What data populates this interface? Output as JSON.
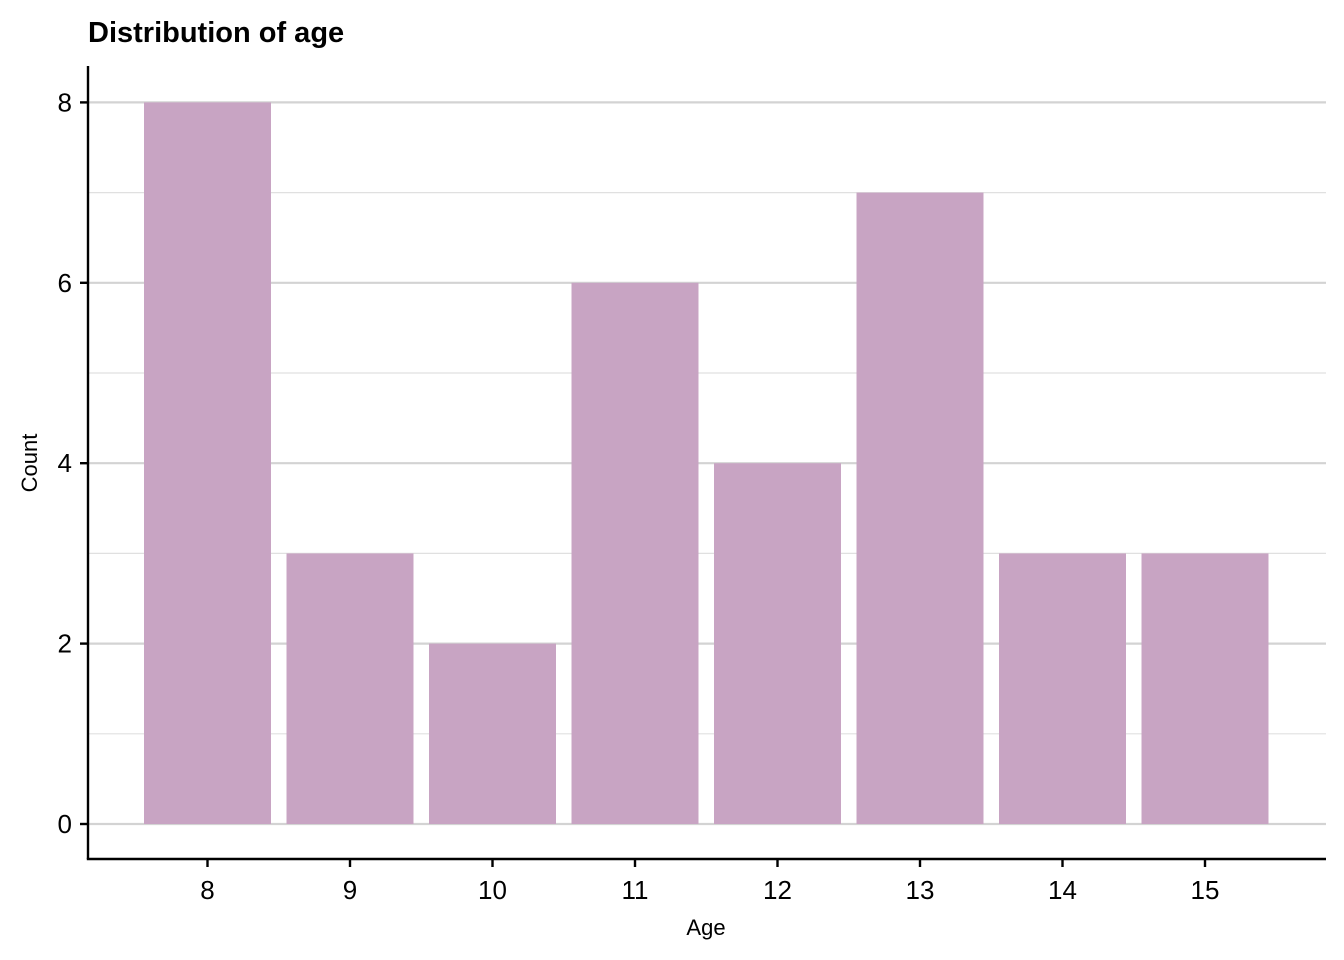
{
  "chart_data": {
    "type": "bar",
    "title": "Distribution of age",
    "xlabel": "Age",
    "ylabel": "Count",
    "categories": [
      "8",
      "9",
      "10",
      "11",
      "12",
      "13",
      "14",
      "15"
    ],
    "values": [
      8,
      3,
      2,
      6,
      4,
      7,
      3,
      3
    ],
    "ylim": [
      0,
      8.4
    ],
    "yticks": [
      0,
      2,
      4,
      6,
      8
    ],
    "grid": "horizontal",
    "bar_color": "#c8a4c3",
    "legend": "none"
  }
}
